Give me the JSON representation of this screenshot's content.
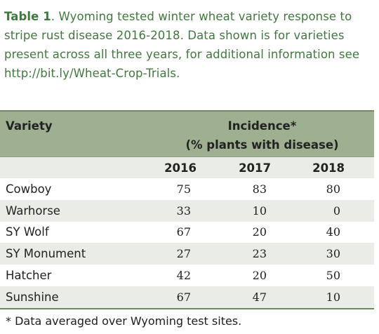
{
  "caption": {
    "label": "Table 1",
    "text": ". Wyoming tested winter wheat variety response to stripe rust disease 2016-2018. Data shown is for varieties present across all three years, for additional information see http://bit.ly/Wheat-Crop-Trials."
  },
  "table": {
    "header": {
      "variety": "Variety",
      "incidence_line1": "Incidence*",
      "incidence_line2": "(% plants with disease)"
    },
    "years": [
      "2016",
      "2017",
      "2018"
    ],
    "rows": [
      {
        "variety": "Cowboy",
        "v2016": "75",
        "v2017": "83",
        "v2018": "80"
      },
      {
        "variety": "Warhorse",
        "v2016": "33",
        "v2017": "10",
        "v2018": "0"
      },
      {
        "variety": "SY Wolf",
        "v2016": "67",
        "v2017": "20",
        "v2018": "40"
      },
      {
        "variety": "SY Monument",
        "v2016": "27",
        "v2017": "23",
        "v2018": "30"
      },
      {
        "variety": "Hatcher",
        "v2016": "42",
        "v2017": "20",
        "v2018": "50"
      },
      {
        "variety": "Sunshine",
        "v2016": "67",
        "v2017": "47",
        "v2018": "10"
      }
    ]
  },
  "footnote": "* Data averaged over Wyoming test sites.",
  "colors": {
    "caption_text": "#3f7a3c",
    "header_bg": "#9eb08f",
    "stripe_bg": "#e9ede5",
    "rule": "#6e8a62"
  }
}
